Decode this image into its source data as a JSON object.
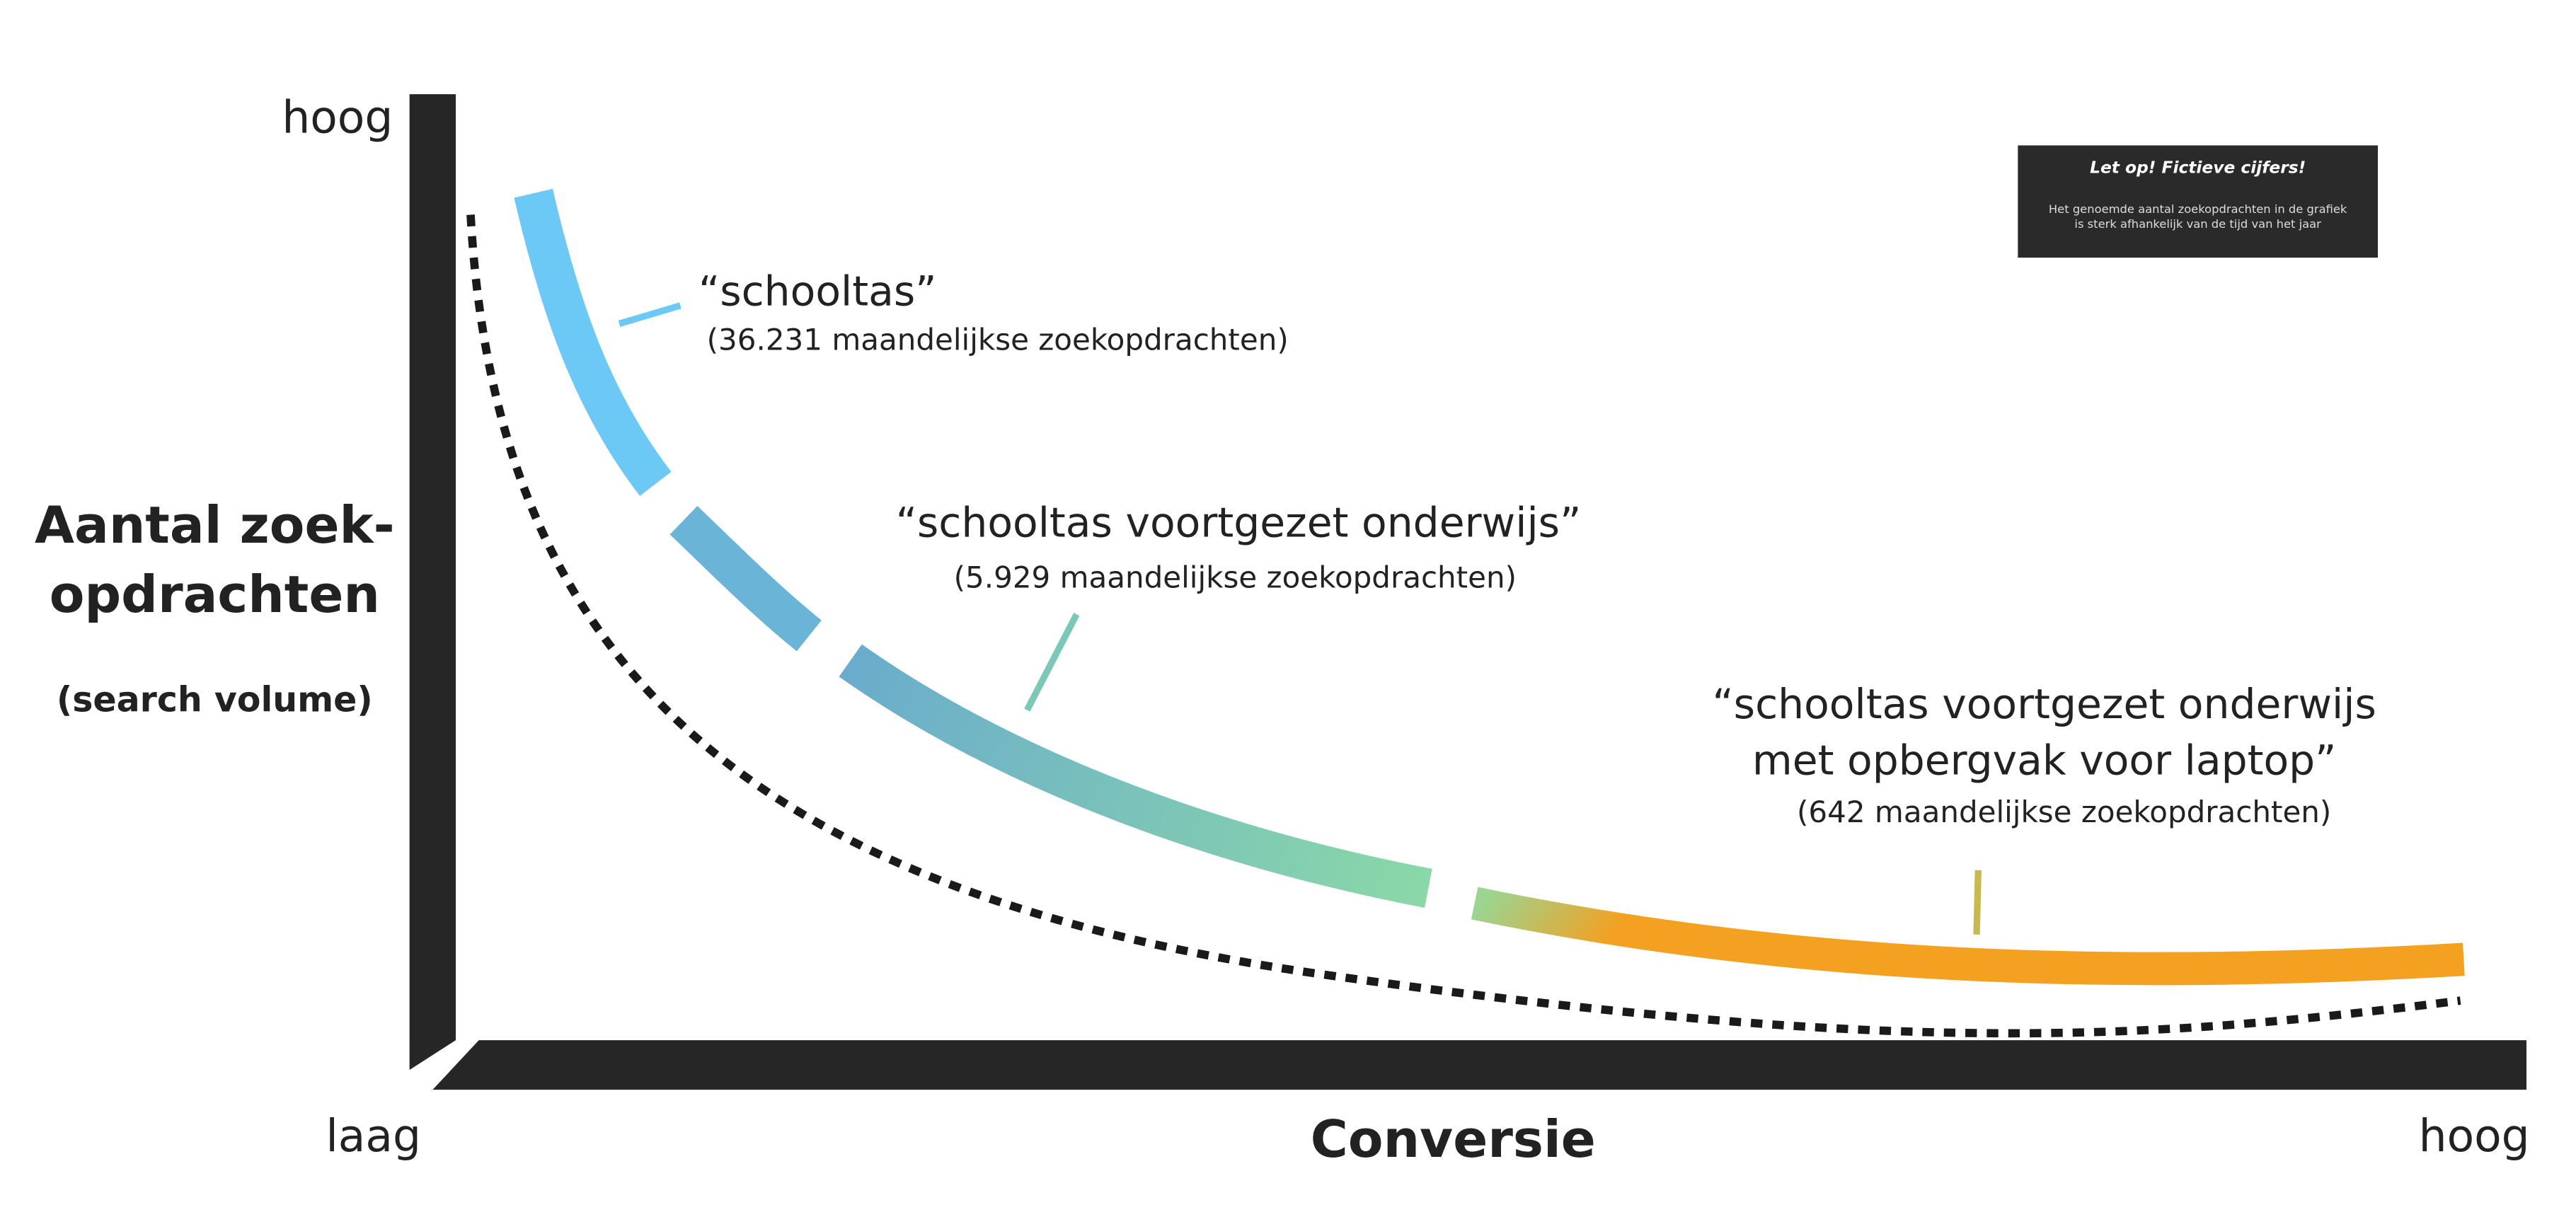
{
  "axes": {
    "y_high": "hoog",
    "y_title": [
      "Aantal zoek-",
      "opdrachten"
    ],
    "y_subtitle": "(search volume)",
    "x_low": "laag",
    "x_title": "Conversie",
    "x_high": "hoog"
  },
  "keywords": [
    {
      "label": [
        "“schooltas”"
      ],
      "volume": "(36.231 maandelijkse zoekopdrachten)"
    },
    {
      "label": [
        "“schooltas voortgezet onderwijs”"
      ],
      "volume": "(5.929 maandelijkse zoekopdrachten)"
    },
    {
      "label": [
        "“schooltas voortgezet onderwijs",
        "met opbergvak voor laptop”"
      ],
      "volume": "(642 maandelijkse zoekopdrachten)"
    }
  ],
  "note": {
    "title": "Let op! Fictieve cijfers!",
    "text": [
      "Het genoemde aantal zoekopdrachten in de grafiek",
      "is sterk afhankelijk van de tijd van het jaar"
    ]
  }
}
